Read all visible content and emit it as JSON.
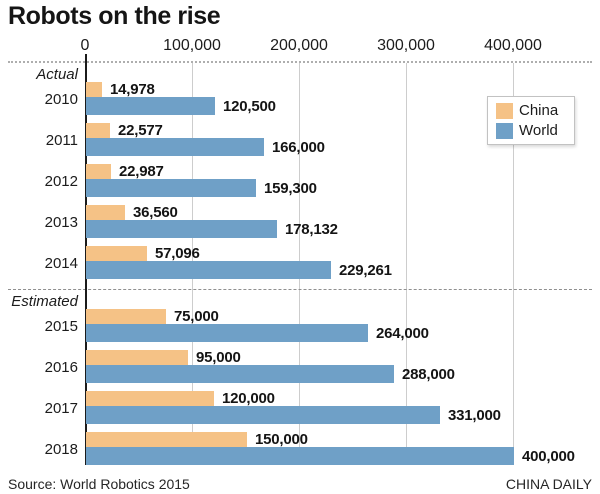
{
  "title": "Robots on the rise",
  "source": "Source: World Robotics 2015",
  "credit": "CHINA DAILY",
  "colors": {
    "china": "#F5C286",
    "world": "#6FA0C7",
    "grid": "#CDCDCD",
    "axis_line": "#1B1B1B",
    "text": "#1C1C1C"
  },
  "legend": {
    "items": [
      {
        "name": "China",
        "color": "#F5C286"
      },
      {
        "name": "World",
        "color": "#6FA0C7"
      }
    ]
  },
  "axis": {
    "ticks": [
      {
        "label": "0",
        "value": 0
      },
      {
        "label": "100,000",
        "value": 100000
      },
      {
        "label": "200,000",
        "value": 200000
      },
      {
        "label": "300,000",
        "value": 300000
      },
      {
        "label": "400,000",
        "value": 400000
      }
    ],
    "max": 400000
  },
  "chart_data": {
    "type": "bar",
    "orientation": "horizontal",
    "title": "Robots on the rise",
    "categories": [
      "2010",
      "2011",
      "2012",
      "2013",
      "2014",
      "2015",
      "2016",
      "2017",
      "2018"
    ],
    "sections": [
      {
        "label": "Actual",
        "from": 0,
        "to": 4
      },
      {
        "label": "Estimated",
        "from": 5,
        "to": 8
      }
    ],
    "series": [
      {
        "name": "China",
        "color": "#F5C286",
        "values": [
          14978,
          22577,
          22987,
          36560,
          57096,
          75000,
          95000,
          120000,
          150000
        ],
        "labels": [
          "14,978",
          "22,577",
          "22,987",
          "36,560",
          "57,096",
          "75,000",
          "95,000",
          "120,000",
          "150,000"
        ]
      },
      {
        "name": "World",
        "color": "#6FA0C7",
        "values": [
          120500,
          166000,
          159300,
          178132,
          229261,
          264000,
          288000,
          331000,
          400000
        ],
        "labels": [
          "120,500",
          "166,000",
          "159,300",
          "178,132",
          "229,261",
          "264,000",
          "288,000",
          "331,000",
          "400,000"
        ]
      }
    ],
    "xlim": [
      0,
      400000
    ],
    "grid": true,
    "legend_position": "top-right"
  }
}
